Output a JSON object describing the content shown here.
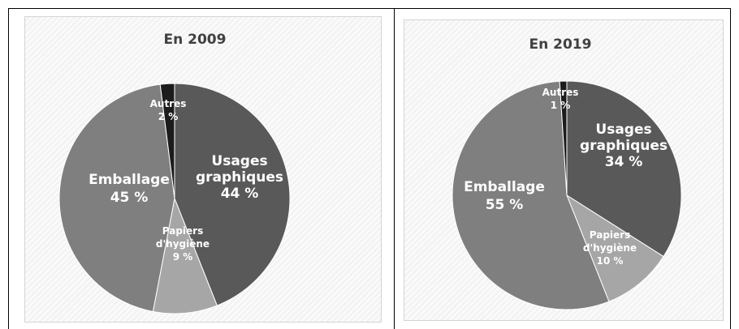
{
  "chart_data": [
    {
      "type": "pie",
      "title": "En 2009",
      "slices": [
        {
          "name": "Usages graphiques",
          "lines": [
            "Usages",
            "graphiques"
          ],
          "pct_label": "44 %",
          "value": 44,
          "color": "#595959"
        },
        {
          "name": "Papiers d'hygiène",
          "lines": [
            "Papiers",
            "d'hygiène"
          ],
          "pct_label": "9 %",
          "value": 9,
          "color": "#a6a6a6"
        },
        {
          "name": "Emballage",
          "lines": [
            "Emballage"
          ],
          "pct_label": "45 %",
          "value": 45,
          "color": "#7f7f7f"
        },
        {
          "name": "Autres",
          "lines": [
            "Autres"
          ],
          "pct_label": "2 %",
          "value": 2,
          "color": "#1c1c1c"
        }
      ]
    },
    {
      "type": "pie",
      "title": "En 2019",
      "slices": [
        {
          "name": "Usages graphiques",
          "lines": [
            "Usages",
            "graphiques"
          ],
          "pct_label": "34 %",
          "value": 34,
          "color": "#595959"
        },
        {
          "name": "Papiers d'hygiène",
          "lines": [
            "Papiers",
            "d'hygiène"
          ],
          "pct_label": "10 %",
          "value": 10,
          "color": "#a6a6a6"
        },
        {
          "name": "Emballage",
          "lines": [
            "Emballage"
          ],
          "pct_label": "55 %",
          "value": 55,
          "color": "#7f7f7f"
        },
        {
          "name": "Autres",
          "lines": [
            "Autres"
          ],
          "pct_label": "1 %",
          "value": 1,
          "color": "#1c1c1c"
        }
      ]
    }
  ]
}
